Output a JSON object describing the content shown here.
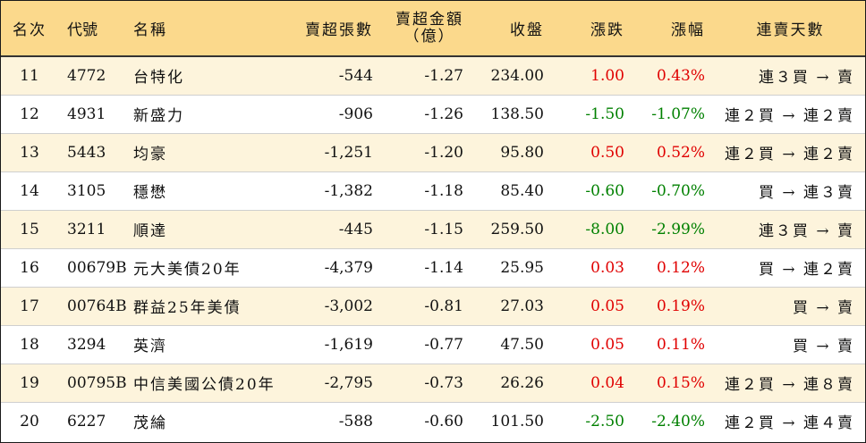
{
  "headers": {
    "rank": "名次",
    "code": "代號",
    "name": "名稱",
    "net_sell_lots": "賣超張數",
    "net_sell_amount_line1": "賣超金額",
    "net_sell_amount_line2": "（億）",
    "close": "收盤",
    "change": "漲跌",
    "pct": "漲幅",
    "days": "連賣天數"
  },
  "colors": {
    "header_bg": "#fbd98c",
    "odd_row_bg": "#fdf4dc",
    "up": "#e00000",
    "down": "#008000"
  },
  "rows": [
    {
      "rank": "11",
      "code": "4772",
      "name": "台特化",
      "lots": "-544",
      "amount": "-1.27",
      "close": "234.00",
      "change": "1.00",
      "pct": "0.43%",
      "dir": "up",
      "days": "連３買 → 賣"
    },
    {
      "rank": "12",
      "code": "4931",
      "name": "新盛力",
      "lots": "-906",
      "amount": "-1.26",
      "close": "138.50",
      "change": "-1.50",
      "pct": "-1.07%",
      "dir": "down",
      "days": "連２買 → 連２賣"
    },
    {
      "rank": "13",
      "code": "5443",
      "name": "均豪",
      "lots": "-1,251",
      "amount": "-1.20",
      "close": "95.80",
      "change": "0.50",
      "pct": "0.52%",
      "dir": "up",
      "days": "連２買 → 連２賣"
    },
    {
      "rank": "14",
      "code": "3105",
      "name": "穩懋",
      "lots": "-1,382",
      "amount": "-1.18",
      "close": "85.40",
      "change": "-0.60",
      "pct": "-0.70%",
      "dir": "down",
      "days": "買 → 連３賣"
    },
    {
      "rank": "15",
      "code": "3211",
      "name": "順達",
      "lots": "-445",
      "amount": "-1.15",
      "close": "259.50",
      "change": "-8.00",
      "pct": "-2.99%",
      "dir": "down",
      "days": "連３買 → 賣"
    },
    {
      "rank": "16",
      "code": "00679B",
      "name": "元大美債20年",
      "lots": "-4,379",
      "amount": "-1.14",
      "close": "25.95",
      "change": "0.03",
      "pct": "0.12%",
      "dir": "up",
      "days": "買 → 連２賣"
    },
    {
      "rank": "17",
      "code": "00764B",
      "name": "群益25年美債",
      "lots": "-3,002",
      "amount": "-0.81",
      "close": "27.03",
      "change": "0.05",
      "pct": "0.19%",
      "dir": "up",
      "days": "買 → 賣"
    },
    {
      "rank": "18",
      "code": "3294",
      "name": "英濟",
      "lots": "-1,619",
      "amount": "-0.77",
      "close": "47.50",
      "change": "0.05",
      "pct": "0.11%",
      "dir": "up",
      "days": "買 → 賣"
    },
    {
      "rank": "19",
      "code": "00795B",
      "name": "中信美國公債20年",
      "lots": "-2,795",
      "amount": "-0.73",
      "close": "26.26",
      "change": "0.04",
      "pct": "0.15%",
      "dir": "up",
      "days": "連２買 → 連８賣"
    },
    {
      "rank": "20",
      "code": "6227",
      "name": "茂綸",
      "lots": "-588",
      "amount": "-0.60",
      "close": "101.50",
      "change": "-2.50",
      "pct": "-2.40%",
      "dir": "down",
      "days": "連２買 → 連４賣"
    }
  ]
}
